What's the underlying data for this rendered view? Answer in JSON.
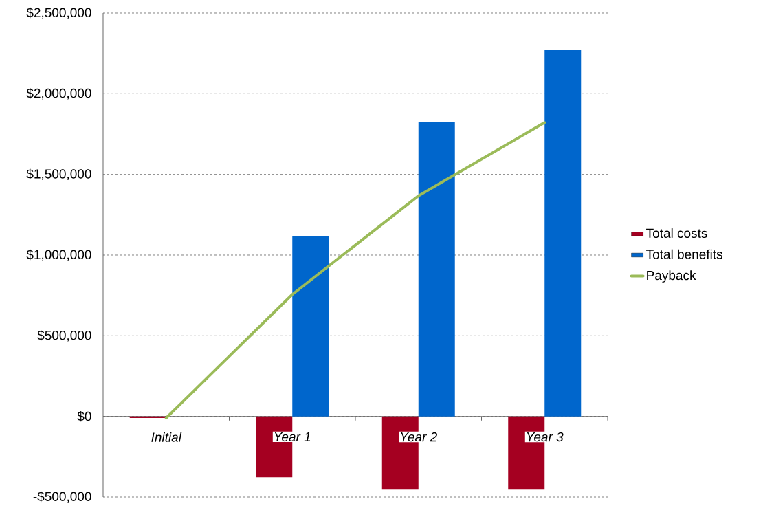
{
  "chart_data": {
    "type": "bar",
    "categories": [
      "Initial",
      "Year 1",
      "Year 2",
      "Year 3"
    ],
    "series": [
      {
        "name": "Total costs",
        "type": "bar",
        "color": "#a50021",
        "values": [
          -10000,
          -377000,
          -454000,
          -454000
        ]
      },
      {
        "name": "Total benefits",
        "type": "bar",
        "color": "#0066cc",
        "values": [
          null,
          1119000,
          1823000,
          2274000
        ]
      },
      {
        "name": "Payback",
        "type": "line",
        "color": "#9bbb59",
        "values": [
          -10000,
          756000,
          1367000,
          1821000
        ]
      }
    ],
    "ylim": [
      -500000,
      2500000
    ],
    "yticks": [
      {
        "value": -500000,
        "label": "-$500,000"
      },
      {
        "value": 0,
        "label": "$0"
      },
      {
        "value": 500000,
        "label": "$500,000"
      },
      {
        "value": 1000000,
        "label": "$1,000,000"
      },
      {
        "value": 1500000,
        "label": "$1,500,000"
      },
      {
        "value": 2000000,
        "label": "$2,000,000"
      },
      {
        "value": 2500000,
        "label": "$2,500,000"
      }
    ],
    "grid": "y",
    "legend": "right",
    "marker": "none",
    "line_style": "solid"
  }
}
